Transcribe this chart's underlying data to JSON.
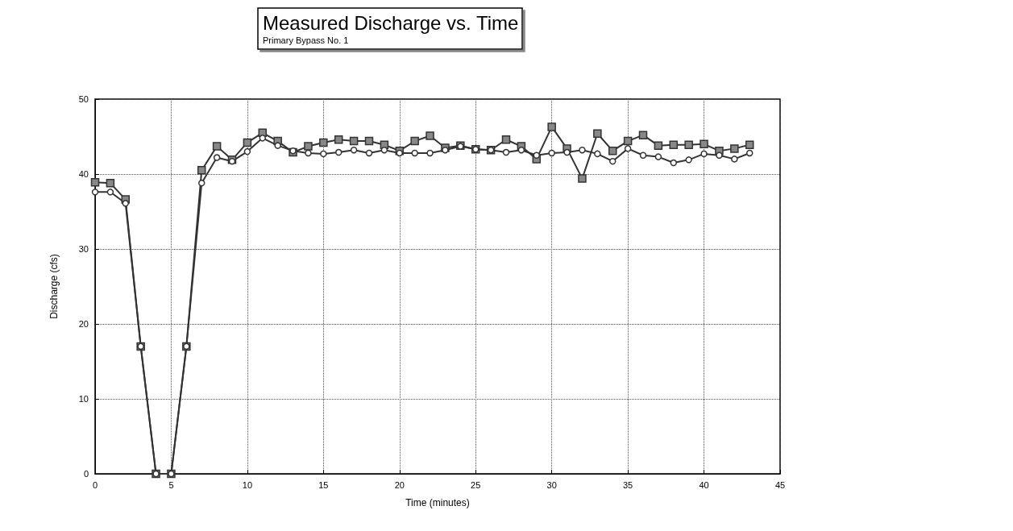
{
  "chart_data": {
    "type": "line",
    "title": "Measured Discharge vs. Time",
    "subtitle": "Primary Bypass No. 1",
    "xlabel": "Time (minutes)",
    "ylabel": "Discharge (cfs)",
    "x": [
      0,
      1,
      2,
      3,
      4,
      5,
      6,
      7,
      8,
      9,
      10,
      11,
      12,
      13,
      14,
      15,
      16,
      17,
      18,
      19,
      20,
      21,
      22,
      23,
      24,
      25,
      26,
      27,
      28,
      29,
      30,
      31,
      32,
      33,
      34,
      35,
      36,
      37,
      38,
      39,
      40,
      41,
      42,
      43
    ],
    "series": [
      {
        "color": "#333333",
        "marker": "square",
        "values": [
          38.9,
          38.8,
          36.6,
          17,
          0,
          0,
          17,
          40.5,
          43.7,
          41.9,
          44.2,
          45.5,
          44.4,
          42.9,
          43.7,
          44.2,
          44.6,
          44.4,
          44.4,
          43.9,
          43.1,
          44.4,
          45.1,
          43.5,
          43.8,
          43.3,
          43.2,
          44.6,
          43.7,
          42.0,
          46.3,
          43.4,
          39.4,
          45.4,
          43.1,
          44.4,
          45.2,
          43.8,
          43.9,
          43.9,
          44.0,
          43.1,
          43.4,
          43.9
        ]
      },
      {
        "color": "#333333",
        "marker": "circle",
        "values": [
          37.6,
          37.6,
          36.1,
          17,
          0,
          0,
          17,
          38.8,
          42.2,
          41.7,
          43.0,
          44.8,
          43.8,
          43.1,
          42.8,
          42.7,
          42.9,
          43.2,
          42.8,
          43.2,
          42.8,
          42.8,
          42.8,
          43.2,
          43.7,
          43.3,
          43.2,
          42.9,
          43.2,
          42.5,
          42.8,
          42.9,
          43.2,
          42.7,
          41.7,
          43.4,
          42.5,
          42.3,
          41.5,
          41.9,
          42.7,
          42.5,
          42.0,
          42.8
        ]
      }
    ],
    "xlim": [
      0,
      45
    ],
    "xticks": [
      0,
      5,
      10,
      15,
      20,
      25,
      30,
      35,
      40,
      45
    ],
    "ylim": [
      0,
      50
    ],
    "yticks": [
      0,
      10,
      20,
      30,
      40,
      50
    ],
    "grid": true,
    "line_style": "solid"
  }
}
